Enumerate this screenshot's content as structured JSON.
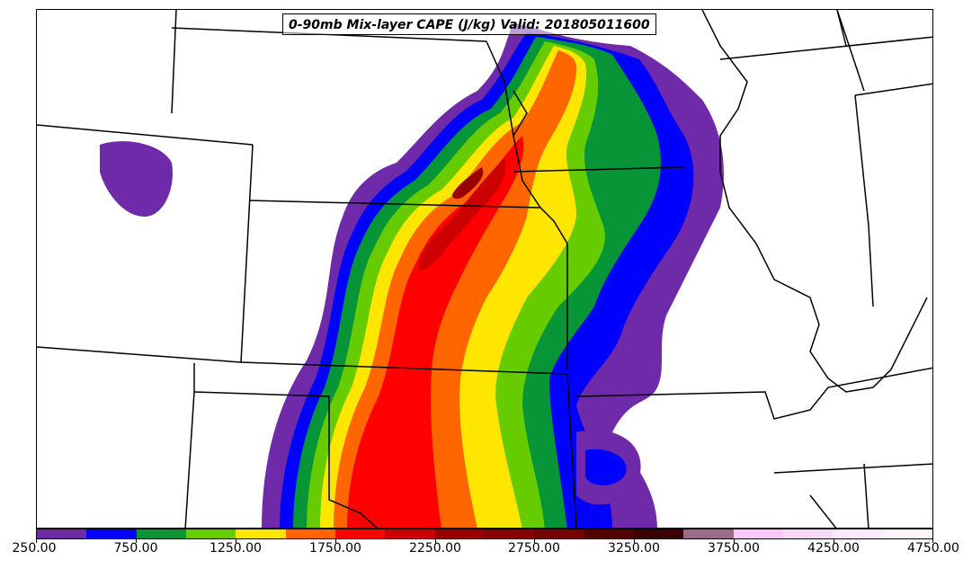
{
  "title": "0-90mb Mix-layer CAPE (J/kg) Valid: 201805011600",
  "colorbar": {
    "min": 250,
    "max": 4750,
    "step": 250,
    "colors": [
      "#6e2aa8",
      "#0000ff",
      "#079538",
      "#66cc00",
      "#ffe600",
      "#ff6600",
      "#ff0000",
      "#cc0000",
      "#990000",
      "#880000",
      "#770000",
      "#550000",
      "#3a0000",
      "#9c6a8a",
      "#f7c8f7",
      "#f8d8f8",
      "#fbe9fb",
      "#fdf4fd"
    ],
    "tick_labels": [
      "250.00",
      "750.00",
      "1250.00",
      "1750.00",
      "2250.00",
      "2750.00",
      "3250.00",
      "3750.00",
      "4250.00",
      "4750.00"
    ]
  }
}
